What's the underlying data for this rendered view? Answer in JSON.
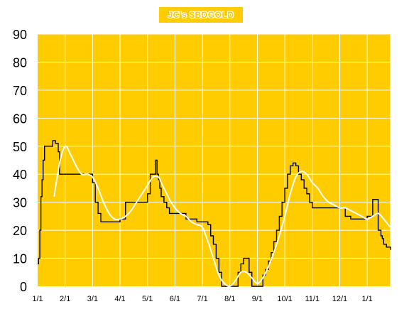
{
  "chart_data": {
    "type": "line",
    "title": "JC's $BDGOLD",
    "ylim": [
      0,
      90
    ],
    "y_ticks": [
      "0",
      "10",
      "20",
      "30",
      "40",
      "50",
      "60",
      "70",
      "80",
      "90"
    ],
    "x_tick_labels": [
      "1/1",
      "2/1",
      "3/1",
      "4/1",
      "5/1",
      "6/1",
      "7/1",
      "8/1",
      "9/1",
      "10/1",
      "11/1",
      "12/1",
      "1/1"
    ],
    "x_range_months": [
      0,
      12.85
    ],
    "grid": true,
    "colors": {
      "background": "#ffcc00",
      "grid": "#ffffff",
      "series_raw": "#000000",
      "series_smooth": "#ffffff"
    },
    "series": [
      {
        "style": "step",
        "x": [
          0.0,
          0.03,
          0.08,
          0.12,
          0.16,
          0.2,
          0.25,
          0.3,
          0.35,
          0.45,
          0.55,
          0.65,
          0.75,
          0.8,
          0.9,
          1.0,
          1.1,
          1.2,
          1.3,
          1.55,
          1.8,
          2.0,
          2.1,
          2.2,
          2.3,
          2.4,
          2.5,
          2.6,
          2.8,
          3.0,
          3.2,
          3.4,
          3.6,
          3.8,
          4.0,
          4.1,
          4.2,
          4.3,
          4.35,
          4.4,
          4.45,
          4.5,
          4.6,
          4.7,
          4.8,
          5.0,
          5.2,
          5.4,
          5.6,
          5.8,
          6.0,
          6.2,
          6.3,
          6.4,
          6.5,
          6.6,
          6.7,
          6.8,
          6.9,
          7.0,
          7.1,
          7.2,
          7.3,
          7.4,
          7.5,
          7.6,
          7.7,
          7.8,
          7.9,
          8.0,
          8.1,
          8.2,
          8.3,
          8.4,
          8.5,
          8.6,
          8.7,
          8.8,
          8.9,
          9.0,
          9.1,
          9.2,
          9.3,
          9.4,
          9.5,
          9.6,
          9.7,
          9.8,
          9.9,
          10.0,
          10.2,
          10.4,
          10.6,
          10.8,
          11.0,
          11.2,
          11.4,
          11.6,
          11.8,
          11.9,
          12.0,
          12.2,
          12.3,
          12.4,
          12.5,
          12.55,
          12.6,
          12.7,
          12.85
        ],
        "values": [
          8,
          10,
          20,
          32,
          38,
          45,
          50,
          50,
          50,
          50,
          52,
          51,
          48,
          40,
          40,
          40,
          40,
          40,
          40,
          40,
          40,
          37,
          30,
          26,
          23,
          23,
          23,
          23,
          23,
          24,
          30,
          30,
          30,
          30,
          33,
          40,
          40,
          45,
          40,
          38,
          35,
          32,
          30,
          28,
          26,
          26,
          26,
          24,
          24,
          23,
          23,
          22,
          18,
          15,
          10,
          5,
          0,
          0,
          0,
          0,
          0,
          0,
          5,
          8,
          10,
          10,
          5,
          0,
          0,
          0,
          0,
          4,
          6,
          9,
          12,
          16,
          20,
          25,
          30,
          35,
          40,
          43,
          44,
          43,
          40,
          38,
          35,
          33,
          30,
          28,
          28,
          28,
          28,
          28,
          28,
          25,
          24,
          24,
          24,
          24,
          25,
          31,
          31,
          20,
          18,
          17,
          15,
          14,
          13
        ]
      },
      {
        "style": "smooth",
        "x": [
          0.6,
          0.8,
          1.0,
          1.2,
          1.4,
          1.6,
          1.8,
          2.0,
          2.2,
          2.4,
          2.6,
          2.8,
          3.0,
          3.2,
          3.4,
          3.6,
          3.8,
          4.0,
          4.2,
          4.4,
          4.5,
          4.6,
          4.8,
          5.0,
          5.2,
          5.4,
          5.6,
          5.8,
          6.0,
          6.2,
          6.4,
          6.6,
          6.8,
          7.0,
          7.2,
          7.4,
          7.6,
          7.8,
          8.0,
          8.2,
          8.4,
          8.6,
          8.8,
          9.0,
          9.2,
          9.4,
          9.6,
          9.8,
          10.0,
          10.2,
          10.4,
          10.6,
          10.8,
          11.0,
          11.2,
          11.4,
          11.6,
          11.8,
          12.0,
          12.2,
          12.4,
          12.6,
          12.85
        ],
        "values": [
          32,
          44,
          50,
          47,
          43,
          40,
          40,
          39,
          35,
          30,
          26,
          24,
          24,
          25,
          27,
          30,
          33,
          36,
          39,
          39,
          37,
          35,
          31,
          28,
          26,
          25,
          23,
          22,
          21,
          16,
          10,
          4,
          1,
          0,
          2,
          5,
          5,
          3,
          1,
          3,
          7,
          12,
          18,
          25,
          33,
          39,
          41,
          40,
          37,
          35,
          32,
          30,
          29,
          28,
          28,
          27,
          26,
          25,
          24,
          25,
          26,
          24,
          21
        ]
      }
    ]
  }
}
